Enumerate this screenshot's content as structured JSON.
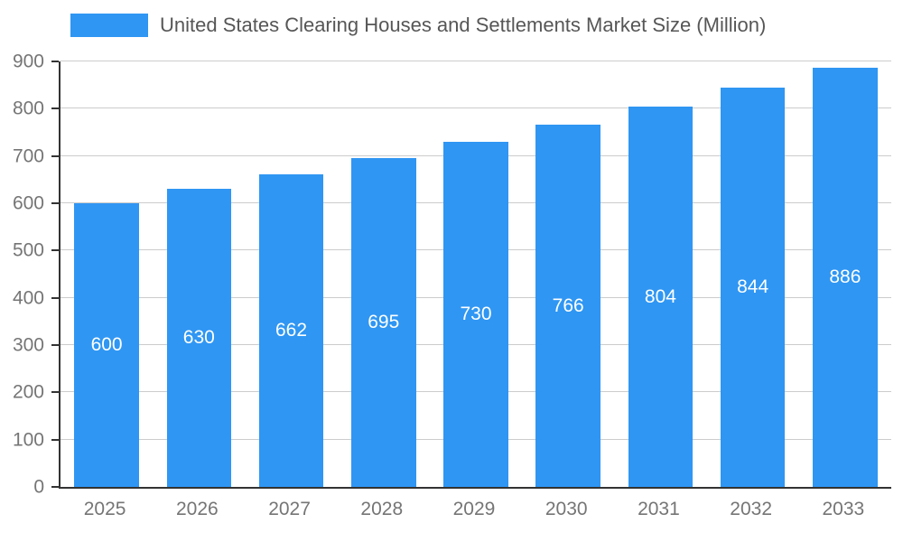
{
  "chart_data": {
    "type": "bar",
    "title": "United States Clearing Houses and Settlements Market Size (Million)",
    "categories": [
      "2025",
      "2026",
      "2027",
      "2028",
      "2029",
      "2030",
      "2031",
      "2032",
      "2033"
    ],
    "values": [
      600,
      630,
      662,
      695,
      730,
      766,
      804,
      844,
      886
    ],
    "xlabel": "",
    "ylabel": "",
    "ylim": [
      0,
      900
    ],
    "yticks": [
      0,
      100,
      200,
      300,
      400,
      500,
      600,
      700,
      800,
      900
    ],
    "grid": true,
    "legend_position": "top",
    "bar_color": "#2F96F3",
    "value_label_color": "#ffffff",
    "axis_text_color": "#757575",
    "title_color": "#565656",
    "gridline_color": "#cccccc"
  }
}
